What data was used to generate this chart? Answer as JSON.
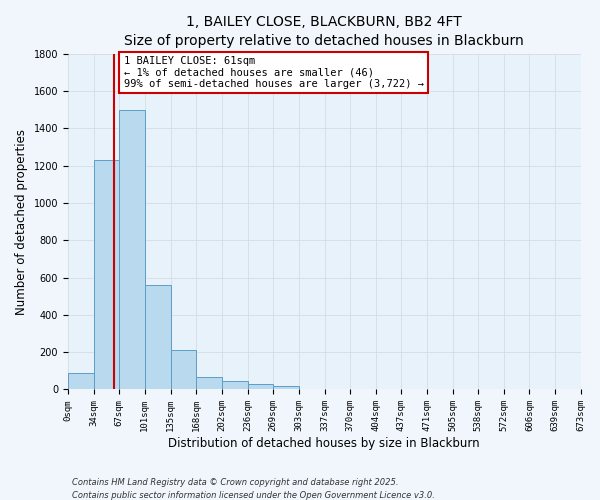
{
  "title": "1, BAILEY CLOSE, BLACKBURN, BB2 4FT",
  "subtitle": "Size of property relative to detached houses in Blackburn",
  "xlabel": "Distribution of detached houses by size in Blackburn",
  "ylabel": "Number of detached properties",
  "bar_edges": [
    0,
    34,
    67,
    101,
    135,
    168,
    202,
    236,
    269,
    303,
    337,
    370,
    404,
    437,
    471,
    505,
    538,
    572,
    606,
    639,
    673
  ],
  "bar_heights": [
    90,
    1230,
    1500,
    560,
    210,
    65,
    45,
    30,
    20,
    0,
    0,
    0,
    0,
    0,
    0,
    0,
    0,
    0,
    0,
    0
  ],
  "bar_color": "#b8d9ee",
  "bar_edge_color": "#5b9ec9",
  "vline_x": 61,
  "vline_color": "#cc0000",
  "ylim": [
    0,
    1800
  ],
  "xlim": [
    0,
    673
  ],
  "annotation_line1": "1 BAILEY CLOSE: 61sqm",
  "annotation_line2": "← 1% of detached houses are smaller (46)",
  "annotation_line3": "99% of semi-detached houses are larger (3,722) →",
  "annotation_box_color": "#ffffff",
  "annotation_box_edge": "#cc0000",
  "grid_color": "#d0d8e0",
  "bg_color": "#e8f2fa",
  "fig_bg_color": "#f0f6fc",
  "footer1": "Contains HM Land Registry data © Crown copyright and database right 2025.",
  "footer2": "Contains public sector information licensed under the Open Government Licence v3.0.",
  "tick_labels": [
    "0sqm",
    "34sqm",
    "67sqm",
    "101sqm",
    "135sqm",
    "168sqm",
    "202sqm",
    "236sqm",
    "269sqm",
    "303sqm",
    "337sqm",
    "370sqm",
    "404sqm",
    "437sqm",
    "471sqm",
    "505sqm",
    "538sqm",
    "572sqm",
    "606sqm",
    "639sqm",
    "673sqm"
  ],
  "yticks": [
    0,
    200,
    400,
    600,
    800,
    1000,
    1200,
    1400,
    1600,
    1800
  ],
  "title_fontsize": 10,
  "subtitle_fontsize": 9.5,
  "label_fontsize": 8.5,
  "tick_fontsize": 6.5,
  "annot_fontsize": 7.5,
  "footer_fontsize": 6.0
}
